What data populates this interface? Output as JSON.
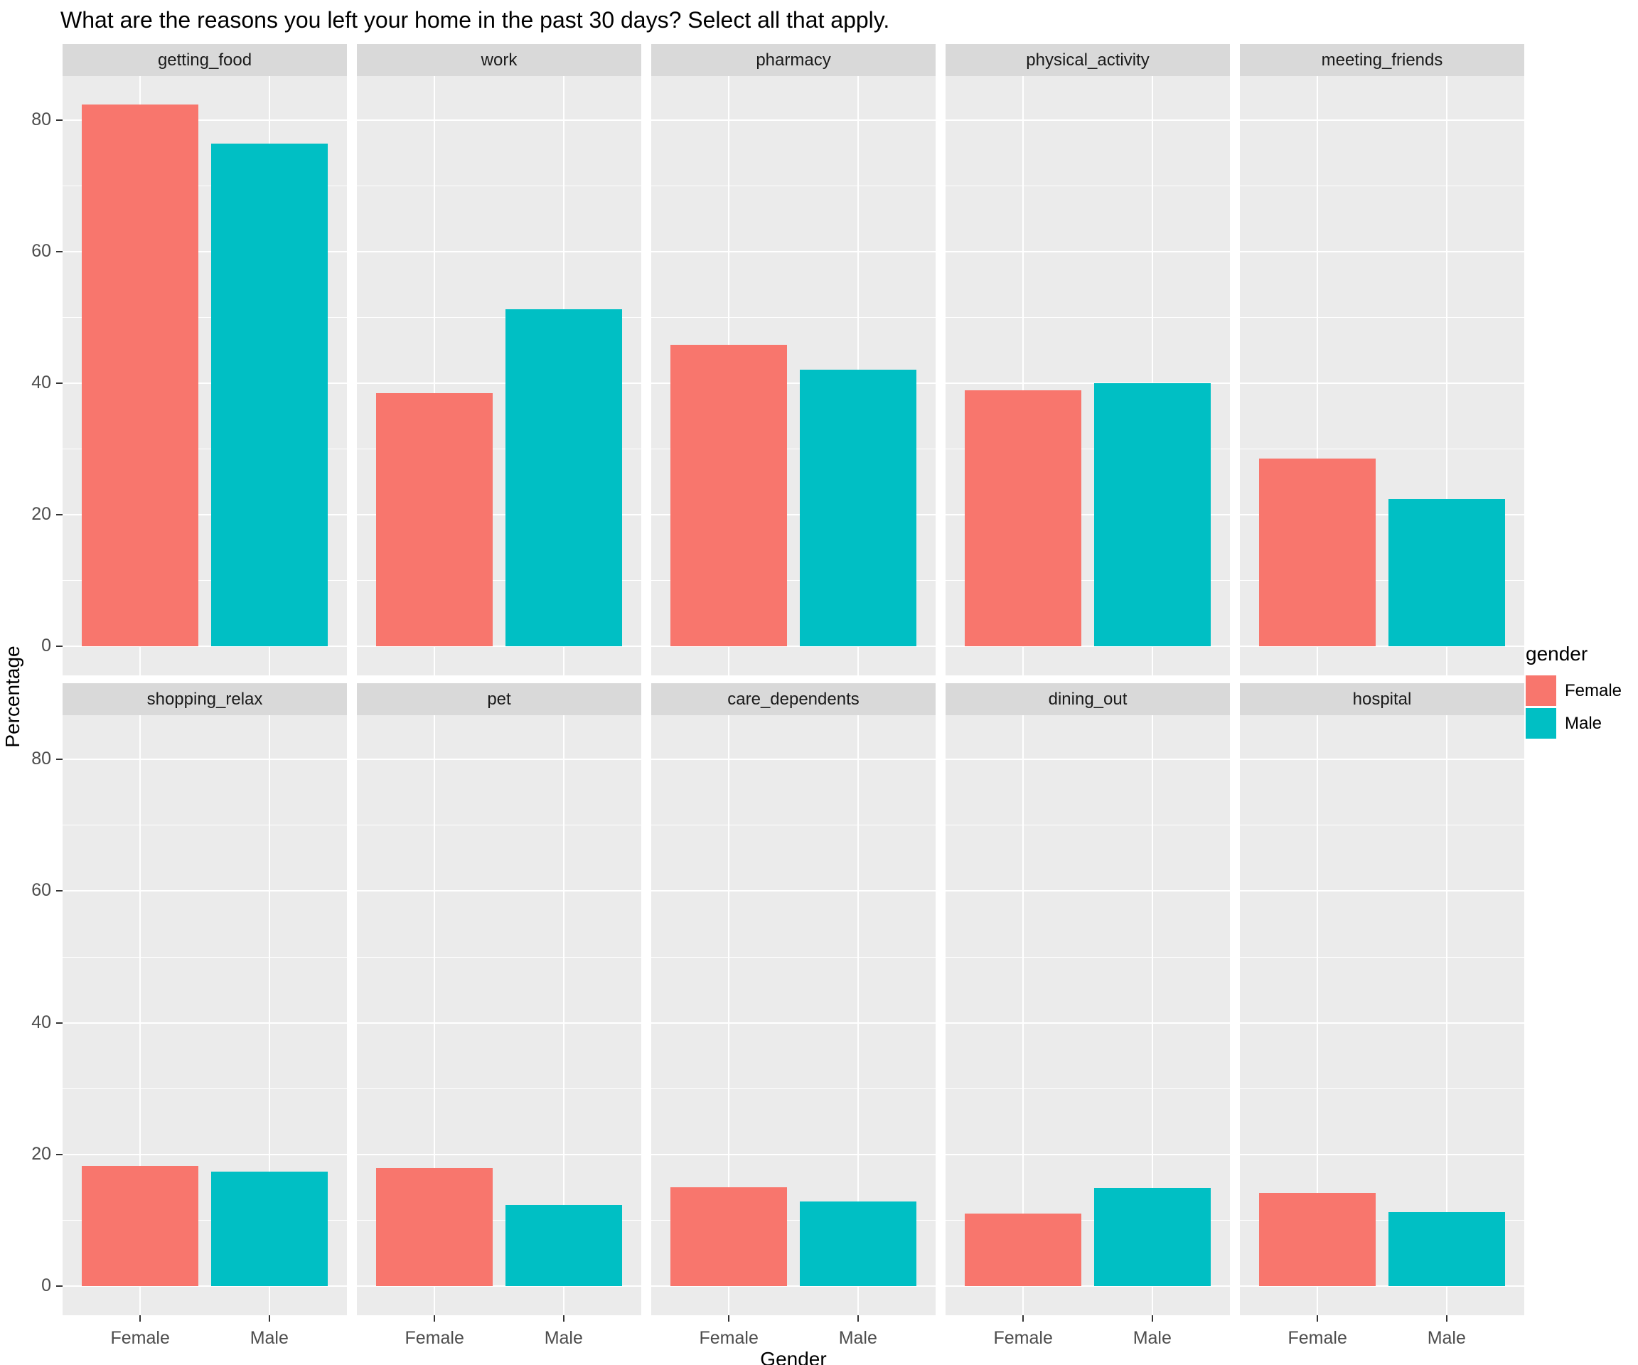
{
  "title": "What are the reasons you left your home in the past 30 days? Select all that apply.",
  "chart_data": {
    "type": "bar",
    "faceted": true,
    "facet_layout": {
      "rows": 2,
      "cols": 5
    },
    "series": [
      "Female",
      "Male"
    ],
    "colors": {
      "Female": "#F8766D",
      "Male": "#00BFC4"
    },
    "facets": [
      {
        "name": "getting_food",
        "values": [
          82.4,
          76.4
        ]
      },
      {
        "name": "work",
        "values": [
          38.5,
          51.3
        ]
      },
      {
        "name": "pharmacy",
        "values": [
          45.9,
          42.1
        ]
      },
      {
        "name": "physical_activity",
        "values": [
          38.9,
          40.0
        ]
      },
      {
        "name": "meeting_friends",
        "values": [
          28.6,
          22.4
        ]
      },
      {
        "name": "shopping_relax",
        "values": [
          18.3,
          17.4
        ]
      },
      {
        "name": "pet",
        "values": [
          17.9,
          12.3
        ]
      },
      {
        "name": "care_dependents",
        "values": [
          15.0,
          12.9
        ]
      },
      {
        "name": "dining_out",
        "values": [
          11.0,
          14.9
        ]
      },
      {
        "name": "hospital",
        "values": [
          14.2,
          11.3
        ]
      }
    ],
    "xlabel": "Gender",
    "ylabel": "Percentage",
    "x_tick_labels": [
      "Female",
      "Male"
    ],
    "y_ticks": [
      0,
      20,
      40,
      60,
      80
    ],
    "y_minor_ticks": [
      10,
      30,
      50,
      70
    ],
    "ylim": [
      -4.4,
      86.7
    ],
    "legend": {
      "title": "gender",
      "position": "right",
      "entries": [
        {
          "label": "Female",
          "color": "#F8766D"
        },
        {
          "label": "Male",
          "color": "#00BFC4"
        }
      ]
    },
    "theme": {
      "panel_bg": "#EBEBEB",
      "strip_bg": "#D9D9D9",
      "grid_color": "#FFFFFF",
      "tick_label_color": "#4D4D4D"
    }
  }
}
